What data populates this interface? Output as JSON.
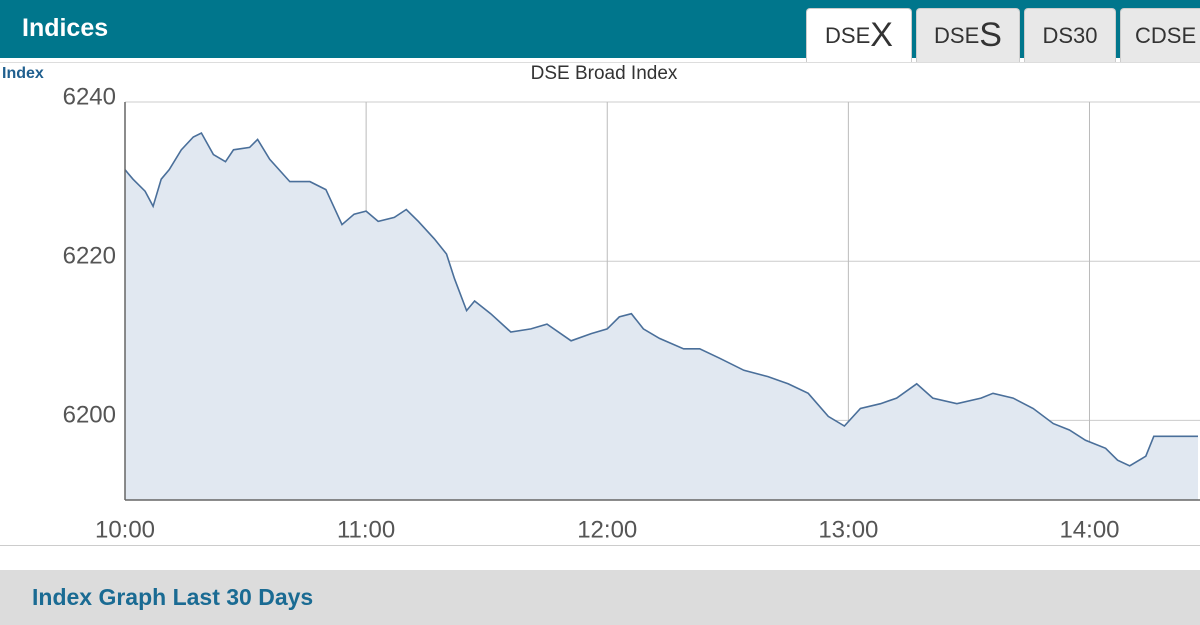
{
  "header": {
    "title": "Indices"
  },
  "tabs": [
    {
      "label": "DSE",
      "letter": "X"
    },
    {
      "label": "DSE",
      "letter": "S"
    },
    {
      "label": "DS30"
    },
    {
      "label": "CDSE"
    }
  ],
  "chart_data": {
    "type": "area",
    "title": "DSE Broad Index",
    "y_label": "Index",
    "x": [
      "10:00",
      "10:02",
      "10:05",
      "10:07",
      "10:09",
      "10:11",
      "10:14",
      "10:17",
      "10:19",
      "10:22",
      "10:25",
      "10:27",
      "10:31",
      "10:33",
      "10:36",
      "10:41",
      "10:46",
      "10:50",
      "10:54",
      "10:57",
      "11:00",
      "11:03",
      "11:07",
      "11:10",
      "11:13",
      "11:17",
      "11:20",
      "11:22",
      "11:25",
      "11:27",
      "11:31",
      "11:36",
      "11:41",
      "11:45",
      "11:51",
      "11:56",
      "12:00",
      "12:03",
      "12:06",
      "12:09",
      "12:13",
      "12:19",
      "12:23",
      "12:28",
      "12:34",
      "12:40",
      "12:45",
      "12:50",
      "12:55",
      "12:59",
      "13:03",
      "13:08",
      "13:12",
      "13:17",
      "13:21",
      "13:27",
      "13:33",
      "13:36",
      "13:41",
      "13:46",
      "13:51",
      "13:55",
      "13:59",
      "14:04",
      "14:07",
      "14:10",
      "14:14",
      "14:16",
      "14:27"
    ],
    "values": [
      6231.5,
      6230.3,
      6228.8,
      6226.9,
      6230.3,
      6231.5,
      6234,
      6235.6,
      6236.1,
      6233.4,
      6232.5,
      6234,
      6234.3,
      6235.3,
      6232.8,
      6230,
      6230,
      6229,
      6224.6,
      6225.9,
      6226.3,
      6225,
      6225.5,
      6226.5,
      6225,
      6222.8,
      6220.9,
      6217.8,
      6213.8,
      6215,
      6213.4,
      6211.1,
      6211.5,
      6212.1,
      6210,
      6210.9,
      6211.5,
      6213,
      6213.4,
      6211.5,
      6210.3,
      6209,
      6209,
      6207.8,
      6206.3,
      6205.5,
      6204.6,
      6203.4,
      6200.5,
      6199.3,
      6201.5,
      6202.1,
      6202.8,
      6204.6,
      6202.8,
      6202.1,
      6202.8,
      6203.4,
      6202.8,
      6201.5,
      6199.6,
      6198.8,
      6197.5,
      6196.5,
      6195,
      6194.3,
      6195.5,
      6198,
      6198
    ],
    "color": "#4a6f9a",
    "fill": "#e1e8f1",
    "xlim": [
      "10:00",
      "14:27"
    ],
    "xticks": [
      "10:00",
      "11:00",
      "12:00",
      "13:00",
      "14:00"
    ],
    "ylim": [
      6190,
      6240
    ],
    "yticks": [
      6200,
      6220,
      6240
    ],
    "grid": true
  },
  "footer": {
    "title": "Index Graph Last 30 Days"
  }
}
